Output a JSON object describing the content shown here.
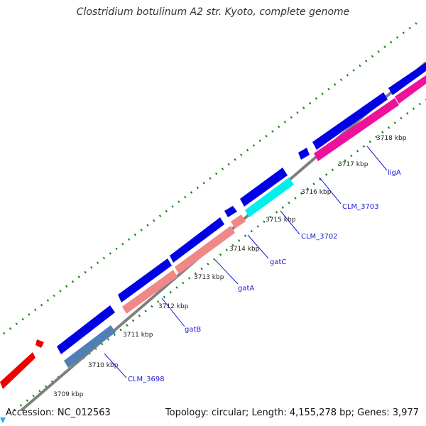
{
  "title": "Clostridium botulinum A2 str. Kyoto, complete genome",
  "accession_text": "Accession: NC_012563",
  "topology_text": "Topology: circular; Length: 4,155,278 bp; Genes: 3,977",
  "colors": {
    "backbone": "#8a8a8a",
    "cds": "#0000e6",
    "gene_pink": "#f08888",
    "gene_magenta": "#ee1199",
    "gene_cyan": "#00eeee",
    "gene_steelblue": "#4f7fb5",
    "gene_red": "#ee0000",
    "tick_green": "#118811",
    "label_blue": "#1a1ad6"
  },
  "ticks": [
    "3709 kbp",
    "3710 kbp",
    "3711 kbp",
    "3712 kbp",
    "3713 kbp",
    "3714 kbp",
    "3715 kbp",
    "3716 kbp",
    "3717 kbp",
    "3718 kbp"
  ],
  "gene_labels": [
    "CLM_3698",
    "gatB",
    "gatA",
    "gatC",
    "CLM_3702",
    "CLM_3703",
    "ligA"
  ]
}
